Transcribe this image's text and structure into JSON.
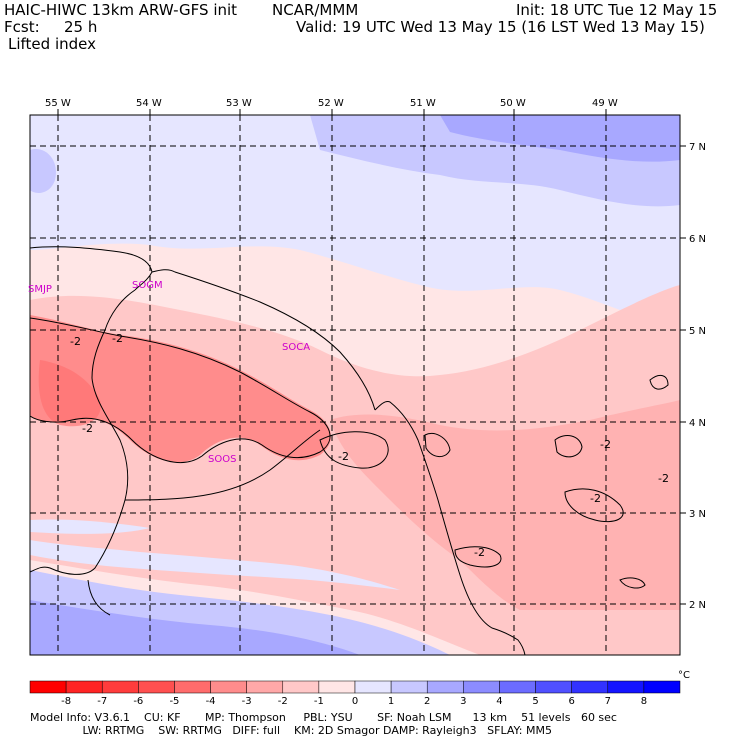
{
  "header": {
    "model": "HAIC-HIWC 13km ARW-GFS init",
    "center": "NCAR/MMM",
    "init": "Init: 18 UTC Tue 12 May 15",
    "fcst_label": "Fcst:",
    "fcst_value": "25 h",
    "valid": "Valid: 19 UTC Wed 13 May 15 (16 LST Wed 13 May 15)",
    "field": "Lifted index"
  },
  "map": {
    "lon_labels": [
      "55 W",
      "54 W",
      "53 W",
      "52 W",
      "51 W",
      "50 W",
      "49 W"
    ],
    "lat_labels": [
      "7 N",
      "6 N",
      "5 N",
      "4 N",
      "3 N",
      "2 N"
    ],
    "stations": [
      "SMJP",
      "SOGM",
      "SOCA",
      "SOOS"
    ],
    "contour_label": "-2"
  },
  "colorbar": {
    "labels": [
      "-8",
      "-7",
      "-6",
      "-5",
      "-4",
      "-3",
      "-2",
      "-1",
      "0",
      "1",
      "2",
      "3",
      "4",
      "5",
      "6",
      "7",
      "8"
    ],
    "unit": "°C",
    "colors": [
      "#ff0000",
      "#ff2424",
      "#ff3c3c",
      "#ff5050",
      "#ff6c6c",
      "#ff8c8c",
      "#ffa8a8",
      "#ffc8c8",
      "#ffe6e6",
      "#e6e6ff",
      "#c8c8ff",
      "#a8a8ff",
      "#8c8cff",
      "#6c6cff",
      "#5050ff",
      "#3232ff",
      "#1414ff",
      "#0000ff"
    ]
  },
  "footer": {
    "line1": "Model Info: V3.6.1    CU: KF       MP: Thompson     PBL: YSU       SF: Noah LSM      13 km    51 levels   60 sec",
    "line2": "               LW: RRTMG    SW: RRTMG   DIFF: full    KM: 2D Smagor DAMP: Rayleigh3   SFLAY: MM5"
  }
}
